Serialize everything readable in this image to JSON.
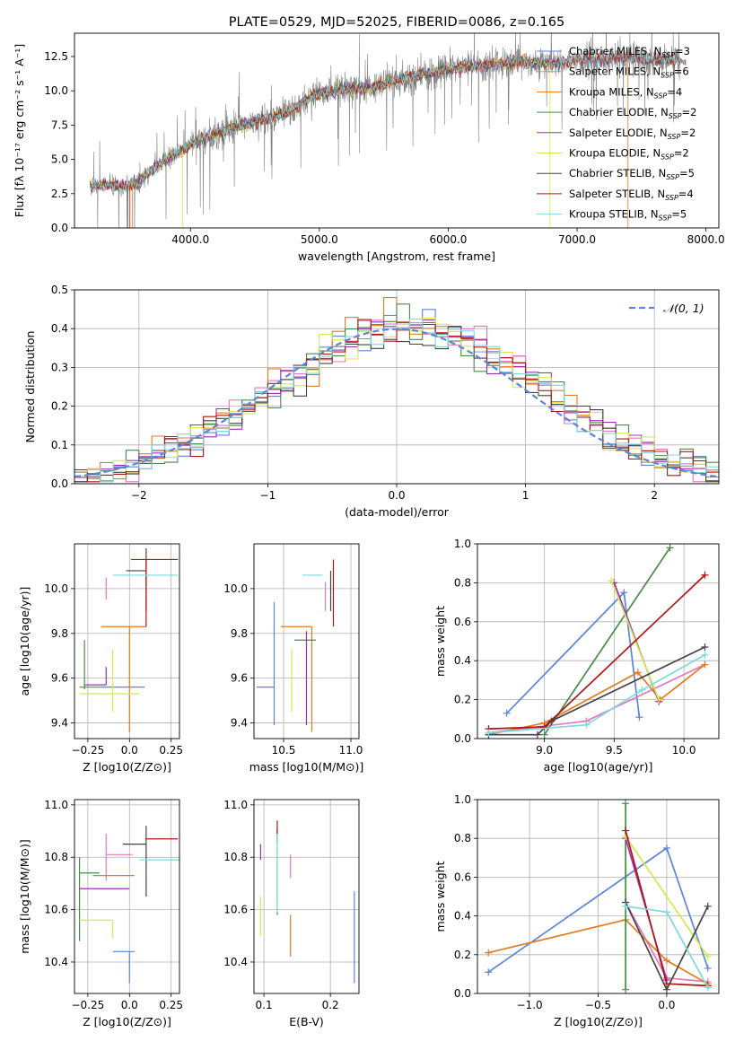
{
  "figure_title": "PLATE=0529, MJD=52025, FIBERID=0086, z=0.165",
  "colors": {
    "Chabrier MILES": "#5b85d8",
    "Salpeter MILES": "#e377c2",
    "Kroupa MILES": "#e07b20",
    "Chabrier ELODIE": "#4a8a4a",
    "Salpeter ELODIE": "#9b30b0",
    "Kroupa ELODIE": "#d6e84c",
    "Chabrier STELIB": "#444444",
    "Salpeter STELIB": "#b01515",
    "Kroupa STELIB": "#7ed8e0"
  },
  "chart_data": [
    {
      "id": "spectrum",
      "type": "line",
      "title": "PLATE=0529, MJD=52025, FIBERID=0086, z=0.165",
      "xlabel": "wavelength [Angstrom, rest frame]",
      "ylabel": "Flux [fλ 10⁻¹⁷ erg cm⁻² s⁻¹ A⁻¹]",
      "xlim": [
        3100,
        8100
      ],
      "ylim": [
        0,
        14.2
      ],
      "xticks": [
        4000,
        5000,
        6000,
        7000,
        8000
      ],
      "yticks": [
        0.0,
        2.5,
        5.0,
        7.5,
        10.0,
        12.5
      ],
      "grid": false,
      "legend": "upper right",
      "observed_color": "#808080",
      "data_envelope": {
        "x": [
          3220,
          3400,
          3500,
          3600,
          3700,
          3800,
          3900,
          4000,
          4100,
          4200,
          4300,
          4400,
          4500,
          4600,
          4700,
          4800,
          4900,
          5000,
          5200,
          5400,
          5600,
          5800,
          6000,
          6200,
          6400,
          6600,
          6800,
          7000,
          7200,
          7400,
          7600,
          7800
        ],
        "y": [
          3.1,
          3.1,
          3.0,
          3.4,
          4.2,
          5.0,
          5.4,
          6.0,
          6.5,
          6.8,
          7.2,
          7.4,
          7.8,
          8.0,
          8.3,
          8.6,
          9.4,
          9.8,
          10.1,
          10.2,
          10.8,
          11.2,
          11.6,
          11.8,
          12.0,
          12.1,
          12.0,
          12.2,
          12.3,
          12.4,
          12.3,
          12.2
        ]
      },
      "series": [
        {
          "name": "Chabrier MILES, N_SSP=3",
          "n_ssp": 3,
          "xmax": 7380
        },
        {
          "name": "Salpeter MILES, N_SSP=6",
          "n_ssp": 6,
          "xmax": 7380
        },
        {
          "name": "Kroupa MILES, N_SSP=4",
          "n_ssp": 4,
          "xmax": 7380
        },
        {
          "name": "Chabrier ELODIE, N_SSP=2",
          "n_ssp": 2,
          "xmax": 6780
        },
        {
          "name": "Salpeter ELODIE, N_SSP=2",
          "n_ssp": 2,
          "xmax": 6780
        },
        {
          "name": "Kroupa ELODIE, N_SSP=2",
          "n_ssp": 2,
          "xmax": 6780
        },
        {
          "name": "Chabrier STELIB, N_SSP=5",
          "n_ssp": 5,
          "xmax": 7850
        },
        {
          "name": "Salpeter STELIB, N_SSP=4",
          "n_ssp": 4,
          "xmax": 7850
        },
        {
          "name": "Kroupa STELIB, N_SSP=5",
          "n_ssp": 5,
          "xmax": 7850
        }
      ],
      "legend_entries": [
        "Chabrier MILES, N_SSP=3",
        "Salpeter MILES, N_SSP=6",
        "Kroupa MILES, N_SSP=4",
        "Chabrier ELODIE, N_SSP=2",
        "Salpeter ELODIE, N_SSP=2",
        "Kroupa ELODIE, N_SSP=2",
        "Chabrier STELIB, N_SSP=5",
        "Salpeter STELIB, N_SSP=4",
        "Kroupa STELIB, N_SSP=5"
      ]
    },
    {
      "id": "residuals",
      "type": "histogram",
      "xlabel": "(data-model)/error",
      "ylabel": "Normed distribution",
      "xlim": [
        -2.5,
        2.5
      ],
      "ylim": [
        0,
        0.5
      ],
      "xticks": [
        -2,
        -1,
        0,
        1,
        2
      ],
      "yticks": [
        0.0,
        0.1,
        0.2,
        0.3,
        0.4,
        0.5
      ],
      "grid": true,
      "legend": "upper right",
      "reference_curve": {
        "label": "𝒩(0, 1)",
        "mean": 0,
        "sigma": 1,
        "color": "#5b85d8",
        "style": "dashed"
      },
      "bin_width": 0.1
    },
    {
      "id": "age_vs_Z",
      "type": "errorbar",
      "xlabel": "Z [log10(Z/Z⊙)]",
      "ylabel": "age  [log10(age/yr)]",
      "xlim": [
        -0.33,
        0.3
      ],
      "ylim": [
        9.33,
        10.2
      ],
      "xticks": [
        -0.25,
        0.0,
        0.25
      ],
      "yticks": [
        9.4,
        9.6,
        9.8,
        10.0
      ],
      "grid": true,
      "points": [
        {
          "series": "Chabrier MILES",
          "x": -0.03,
          "xerr": [
            0.27,
            0.12
          ],
          "y": 9.56,
          "yerr": [
            0.0,
            0.0
          ]
        },
        {
          "series": "Salpeter MILES",
          "x": -0.14,
          "xerr": [
            0.0,
            0.0
          ],
          "y": 10.05,
          "yerr": [
            0.1,
            0.0
          ]
        },
        {
          "series": "Kroupa MILES",
          "x": 0.0,
          "xerr": [
            0.17,
            0.1
          ],
          "y": 9.83,
          "yerr": [
            0.47,
            0.0
          ]
        },
        {
          "series": "Chabrier ELODIE",
          "x": -0.27,
          "xerr": [
            0.0,
            0.0
          ],
          "y": 9.77,
          "yerr": [
            0.22,
            0.0
          ]
        },
        {
          "series": "Salpeter ELODIE",
          "x": -0.14,
          "xerr": [
            0.13,
            0.0
          ],
          "y": 9.57,
          "yerr": [
            0.0,
            0.08
          ]
        },
        {
          "series": "Kroupa ELODIE",
          "x": -0.1,
          "xerr": [
            0.2,
            0.16
          ],
          "y": 9.53,
          "yerr": [
            0.08,
            0.2
          ]
        },
        {
          "series": "Chabrier STELIB",
          "x": 0.1,
          "xerr": [
            0.12,
            0.0
          ],
          "y": 10.08,
          "yerr": [
            0.18,
            0.1
          ]
        },
        {
          "series": "Salpeter STELIB",
          "x": 0.1,
          "xerr": [
            0.09,
            0.19
          ],
          "y": 10.13,
          "yerr": [
            0.3,
            0.0
          ]
        },
        {
          "series": "Kroupa STELIB",
          "x": 0.06,
          "xerr": [
            0.16,
            0.23
          ],
          "y": 10.06,
          "yerr": [
            0.0,
            0.0
          ]
        }
      ]
    },
    {
      "id": "age_vs_mass",
      "type": "errorbar",
      "xlabel": "mass [log10(M/M⊙)]",
      "ylabel": "",
      "xlim": [
        10.28,
        11.06
      ],
      "ylim": [
        9.33,
        10.2
      ],
      "xticks": [
        10.5,
        11.0
      ],
      "yticks": [
        9.4,
        9.6,
        9.8,
        10.0
      ],
      "grid": true,
      "points": [
        {
          "series": "Chabrier MILES",
          "x": 10.43,
          "xerr": [
            0.13,
            0.0
          ],
          "y": 9.56,
          "yerr": [
            0.17,
            0.38
          ]
        },
        {
          "series": "Salpeter MILES",
          "x": 10.81,
          "xerr": [
            0.0,
            0.0
          ],
          "y": 10.03,
          "yerr": [
            0.13,
            0.0
          ]
        },
        {
          "series": "Kroupa MILES",
          "x": 10.71,
          "xerr": [
            0.23,
            0.0
          ],
          "y": 9.83,
          "yerr": [
            0.47,
            0.0
          ]
        },
        {
          "series": "Chabrier ELODIE",
          "x": 10.74,
          "xerr": [
            0.16,
            0.0
          ],
          "y": 9.77,
          "yerr": [
            0.0,
            0.0
          ]
        },
        {
          "series": "Salpeter ELODIE",
          "x": 10.67,
          "xerr": [
            0.0,
            0.0
          ],
          "y": 9.57,
          "yerr": [
            0.18,
            0.24
          ]
        },
        {
          "series": "Kroupa ELODIE",
          "x": 10.56,
          "xerr": [
            0.0,
            0.0
          ],
          "y": 9.53,
          "yerr": [
            0.08,
            0.2
          ]
        },
        {
          "series": "Chabrier STELIB",
          "x": 10.85,
          "xerr": [
            0.0,
            0.0
          ],
          "y": 10.08,
          "yerr": [
            0.18,
            0.0
          ]
        },
        {
          "series": "Salpeter STELIB",
          "x": 10.87,
          "xerr": [
            0.0,
            0.0
          ],
          "y": 10.13,
          "yerr": [
            0.3,
            0.0
          ]
        },
        {
          "series": "Kroupa STELIB",
          "x": 10.79,
          "xerr": [
            0.15,
            0.0
          ],
          "y": 10.06,
          "yerr": [
            0.0,
            0.0
          ]
        }
      ]
    },
    {
      "id": "weight_vs_age",
      "type": "line",
      "xlabel": "age  [log10(age/yr)]",
      "ylabel": "mass weight",
      "xlim": [
        8.52,
        10.25
      ],
      "ylim": [
        0,
        1.0
      ],
      "xticks": [
        9.0,
        9.5,
        10.0
      ],
      "yticks": [
        0.0,
        0.2,
        0.4,
        0.6,
        0.8,
        1.0
      ],
      "grid": true,
      "series": [
        {
          "name": "Chabrier MILES",
          "x": [
            8.73,
            9.57,
            9.68
          ],
          "y": [
            0.13,
            0.75,
            0.11
          ]
        },
        {
          "name": "Salpeter MILES",
          "x": [
            8.6,
            9.3,
            10.15
          ],
          "y": [
            0.03,
            0.09,
            0.38
          ]
        },
        {
          "name": "Kroupa MILES",
          "x": [
            8.6,
            9.0,
            9.67,
            9.83,
            10.15
          ],
          "y": [
            0.02,
            0.08,
            0.34,
            0.2,
            0.38
          ]
        },
        {
          "name": "Chabrier ELODIE",
          "x": [
            9.0,
            9.9
          ],
          "y": [
            0.02,
            0.98
          ]
        },
        {
          "name": "Salpeter ELODIE",
          "x": [
            9.5,
            9.82
          ],
          "y": [
            0.8,
            0.19
          ]
        },
        {
          "name": "Kroupa ELODIE",
          "x": [
            9.48,
            9.82
          ],
          "y": [
            0.81,
            0.2
          ]
        },
        {
          "name": "Chabrier STELIB",
          "x": [
            8.6,
            8.95,
            9.05,
            10.15
          ],
          "y": [
            0.02,
            0.02,
            0.09,
            0.47
          ]
        },
        {
          "name": "Salpeter STELIB",
          "x": [
            8.6,
            9.0,
            10.15
          ],
          "y": [
            0.05,
            0.06,
            0.84
          ]
        },
        {
          "name": "Kroupa STELIB",
          "x": [
            8.6,
            9.3,
            9.7,
            10.15
          ],
          "y": [
            0.03,
            0.07,
            0.25,
            0.43
          ]
        }
      ]
    },
    {
      "id": "mass_vs_Z",
      "type": "errorbar",
      "xlabel": "Z [log10(Z/Z⊙)]",
      "ylabel": "mass [log10(M/M⊙)]",
      "xlim": [
        -0.33,
        0.3
      ],
      "ylim": [
        10.28,
        11.02
      ],
      "xticks": [
        -0.25,
        0.0,
        0.25
      ],
      "yticks": [
        10.4,
        10.6,
        10.8,
        11.0
      ],
      "grid": true,
      "points": [
        {
          "series": "Chabrier MILES",
          "x": 0.0,
          "xerr": [
            0.1,
            0.03
          ],
          "y": 10.44,
          "yerr": [
            0.12,
            0.0
          ]
        },
        {
          "series": "Salpeter MILES",
          "x": -0.14,
          "xerr": [
            0.0,
            0.16
          ],
          "y": 10.81,
          "yerr": [
            0.1,
            0.08
          ]
        },
        {
          "series": "Kroupa MILES",
          "x": -0.05,
          "xerr": [
            0.17,
            0.08
          ],
          "y": 10.73,
          "yerr": [
            0.0,
            0.0
          ]
        },
        {
          "series": "Chabrier ELODIE",
          "x": -0.3,
          "xerr": [
            0.0,
            0.12
          ],
          "y": 10.74,
          "yerr": [
            0.26,
            0.06
          ]
        },
        {
          "series": "Salpeter ELODIE",
          "x": -0.14,
          "xerr": [
            0.16,
            0.14
          ],
          "y": 10.68,
          "yerr": [
            0.0,
            0.0
          ]
        },
        {
          "series": "Kroupa ELODIE",
          "x": -0.1,
          "xerr": [
            0.2,
            0.0
          ],
          "y": 10.56,
          "yerr": [
            0.07,
            0.0
          ]
        },
        {
          "series": "Chabrier STELIB",
          "x": 0.1,
          "xerr": [
            0.14,
            0.0
          ],
          "y": 10.85,
          "yerr": [
            0.2,
            0.07
          ]
        },
        {
          "series": "Salpeter STELIB",
          "x": 0.1,
          "xerr": [
            0.0,
            0.19
          ],
          "y": 10.87,
          "yerr": [
            0.0,
            0.0
          ]
        },
        {
          "series": "Kroupa STELIB",
          "x": 0.06,
          "xerr": [
            0.0,
            0.24
          ],
          "y": 10.79,
          "yerr": [
            0.0,
            0.0
          ]
        }
      ]
    },
    {
      "id": "mass_vs_ebv",
      "type": "errorbar",
      "xlabel": "E(B-V)",
      "ylabel": "",
      "xlim": [
        0.085,
        0.243
      ],
      "ylim": [
        10.28,
        11.02
      ],
      "xticks": [
        0.1,
        0.2
      ],
      "yticks": [
        10.4,
        10.6,
        10.8,
        11.0
      ],
      "grid": true,
      "points": [
        {
          "series": "Chabrier MILES",
          "x": 0.236,
          "y": 10.44,
          "yerr": [
            0.12,
            0.23
          ]
        },
        {
          "series": "Salpeter MILES",
          "x": 0.14,
          "y": 10.81,
          "yerr": [
            0.09,
            0.0
          ]
        },
        {
          "series": "Kroupa MILES",
          "x": 0.14,
          "y": 10.58,
          "yerr": [
            0.16,
            0.0
          ]
        },
        {
          "series": "Chabrier ELODIE",
          "x": 0.12,
          "y": 10.74,
          "yerr": [
            0.16,
            0.09
          ]
        },
        {
          "series": "Salpeter ELODIE",
          "x": 0.095,
          "y": 10.79,
          "yerr": [
            0.0,
            0.06
          ]
        },
        {
          "series": "Kroupa ELODIE",
          "x": 0.095,
          "y": 10.59,
          "yerr": [
            0.09,
            0.06
          ]
        },
        {
          "series": "Chabrier STELIB",
          "x": 0.12,
          "y": 10.85,
          "yerr": [
            0.0,
            0.06
          ]
        },
        {
          "series": "Salpeter STELIB",
          "x": 0.12,
          "y": 10.87,
          "yerr": [
            0.0,
            0.07
          ]
        },
        {
          "series": "Kroupa STELIB",
          "x": 0.12,
          "y": 10.79,
          "yerr": [
            0.2,
            0.1
          ]
        }
      ]
    },
    {
      "id": "weight_vs_Z",
      "type": "line",
      "xlabel": "Z [log10(Z/Z⊙)]",
      "ylabel": "mass weight",
      "xlim": [
        -1.38,
        0.38
      ],
      "ylim": [
        0,
        1.0
      ],
      "xticks": [
        -1.0,
        -0.5,
        0.0
      ],
      "yticks": [
        0.0,
        0.2,
        0.4,
        0.6,
        0.8,
        1.0
      ],
      "grid": true,
      "series": [
        {
          "name": "Chabrier MILES",
          "x": [
            -1.3,
            0.0,
            0.3
          ],
          "y": [
            0.11,
            0.75,
            0.13
          ]
        },
        {
          "name": "Salpeter MILES",
          "x": [
            -0.3,
            0.0,
            0.3
          ],
          "y": [
            0.47,
            0.08,
            0.06
          ]
        },
        {
          "name": "Kroupa MILES",
          "x": [
            -1.3,
            -0.3,
            0.0,
            0.3
          ],
          "y": [
            0.21,
            0.38,
            0.17,
            0.05
          ]
        },
        {
          "name": "Chabrier ELODIE",
          "x": [
            -0.3,
            -0.3
          ],
          "y": [
            0.02,
            0.98
          ]
        },
        {
          "name": "Salpeter ELODIE",
          "x": [
            -0.3,
            0.0
          ],
          "y": [
            0.8,
            0.07
          ]
        },
        {
          "name": "Kroupa ELODIE",
          "x": [
            -0.3,
            0.3
          ],
          "y": [
            0.81,
            0.19
          ]
        },
        {
          "name": "Chabrier STELIB",
          "x": [
            -0.3,
            0.0,
            0.3
          ],
          "y": [
            0.47,
            0.02,
            0.45
          ]
        },
        {
          "name": "Salpeter STELIB",
          "x": [
            -0.3,
            0.0,
            0.3
          ],
          "y": [
            0.84,
            0.05,
            0.04
          ]
        },
        {
          "name": "Kroupa STELIB",
          "x": [
            -0.3,
            0.0,
            0.3
          ],
          "y": [
            0.45,
            0.42,
            0.03
          ]
        }
      ]
    }
  ]
}
